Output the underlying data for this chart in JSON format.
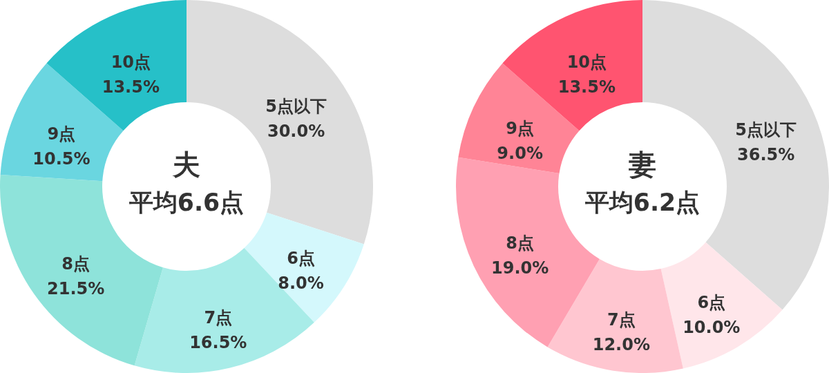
{
  "chart_data": [
    {
      "type": "donut",
      "title": "夫",
      "annotations": [
        "平均6.6点"
      ],
      "categories": [
        "5点以下",
        "6点",
        "7点",
        "8点",
        "9点",
        "10点"
      ],
      "values": [
        30.0,
        8.0,
        16.5,
        21.5,
        10.5,
        13.5
      ],
      "value_labels": [
        "30.0%",
        "8.0%",
        "16.5%",
        "21.5%",
        "10.5%",
        "13.5%"
      ],
      "colors": [
        "#dddddd",
        "#d4f8fc",
        "#a8ece8",
        "#8ee3da",
        "#6ad6e0",
        "#26c0c8"
      ],
      "legend": false
    },
    {
      "type": "donut",
      "title": "妻",
      "annotations": [
        "平均6.2点"
      ],
      "categories": [
        "5点以下",
        "6点",
        "7点",
        "8点",
        "9点",
        "10点"
      ],
      "values": [
        36.5,
        10.0,
        12.0,
        19.0,
        9.0,
        13.5
      ],
      "value_labels": [
        "36.5%",
        "10.0%",
        "12.0%",
        "19.0%",
        "9.0%",
        "13.5%"
      ],
      "colors": [
        "#dddddd",
        "#ffe6ea",
        "#ffc6d0",
        "#ffa0b2",
        "#ff8496",
        "#ff5470"
      ],
      "legend": false
    }
  ]
}
